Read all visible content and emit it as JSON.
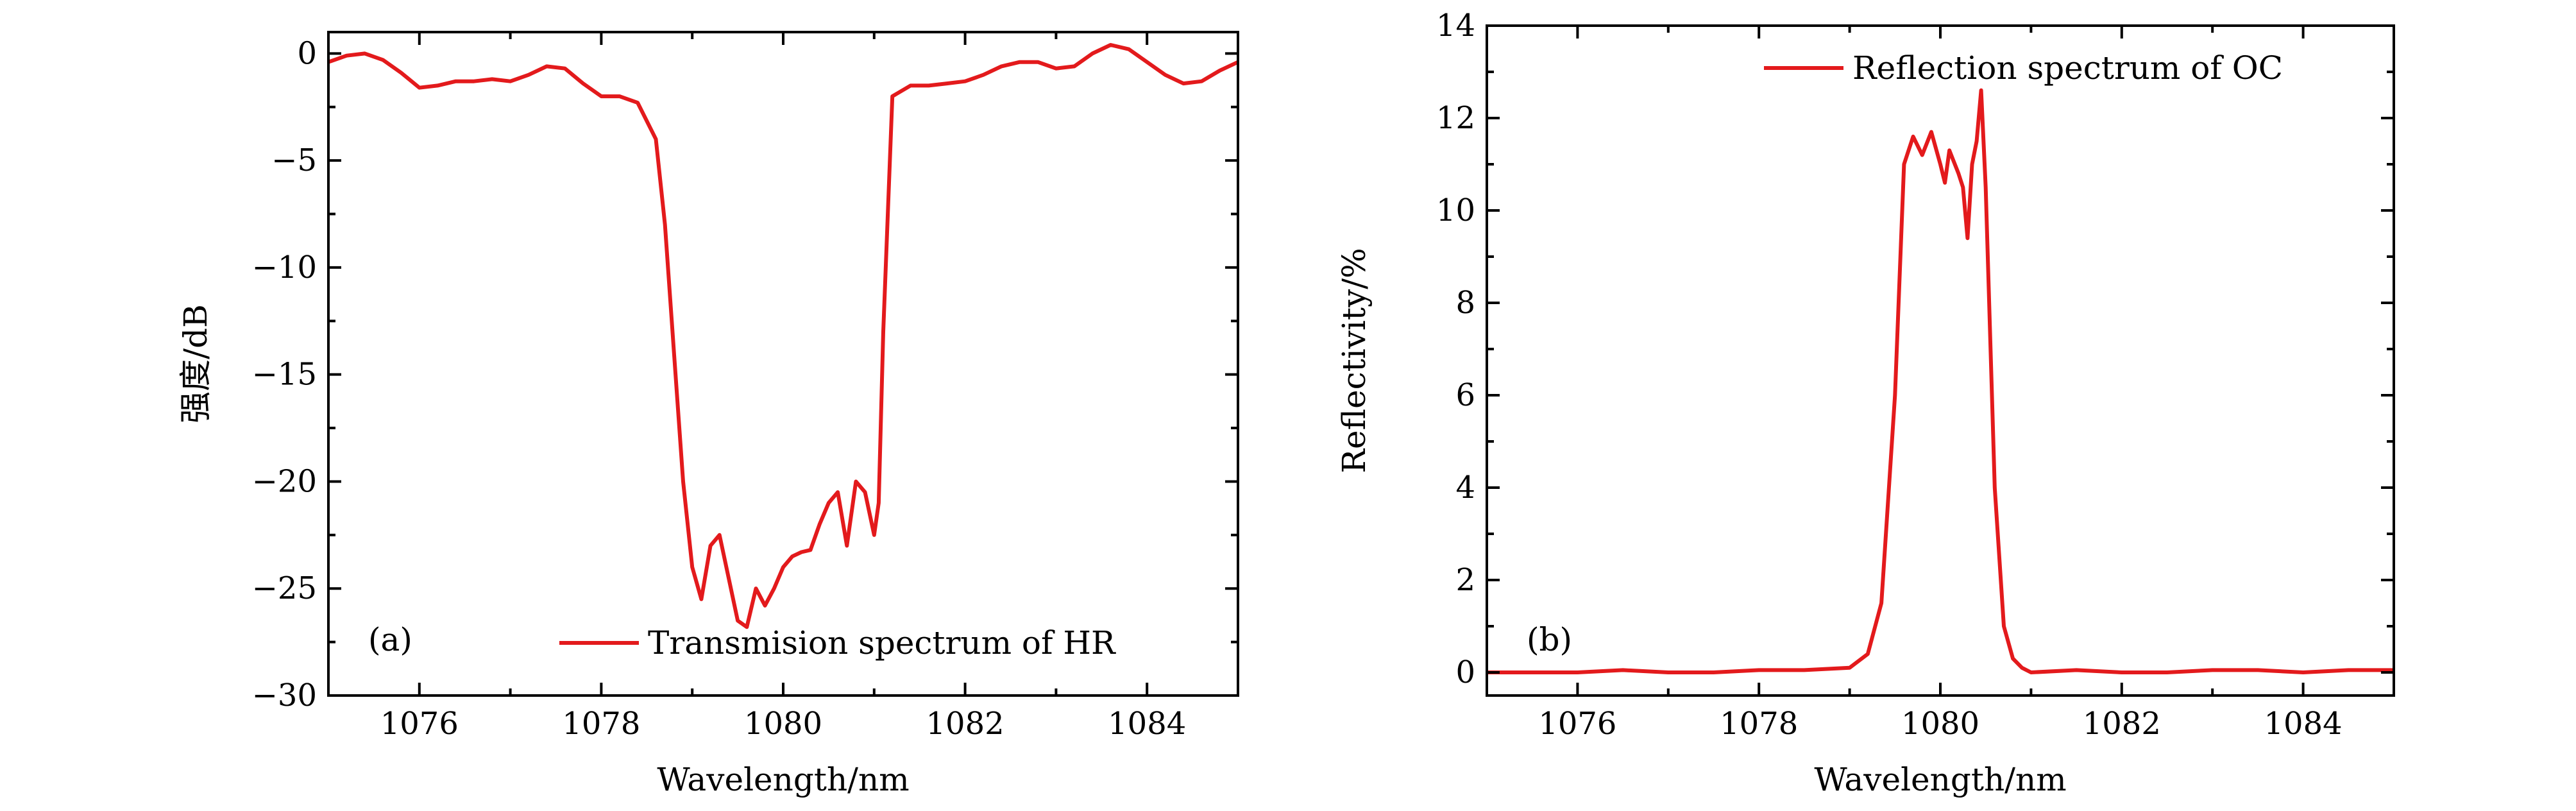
{
  "chart_data": [
    {
      "type": "line",
      "panel_label": "(a)",
      "xlabel": "Wavelength/nm",
      "ylabel": "强度/dB",
      "xlim": [
        1075,
        1085
      ],
      "ylim": [
        -30,
        1
      ],
      "xticks": [
        1076,
        1078,
        1080,
        1082,
        1084
      ],
      "xtick_labels": [
        "1076",
        "1078",
        "1080",
        "1082",
        "1084"
      ],
      "yticks": [
        0,
        -5,
        -10,
        -15,
        -20,
        -25,
        -30
      ],
      "ytick_labels": [
        "0",
        "−5",
        "−10",
        "−15",
        "−20",
        "−25",
        "−30"
      ],
      "legend_position": "bottom-right",
      "color": "#e31a1c",
      "series": [
        {
          "name": "Transmision spectrum of HR",
          "x": [
            1075.0,
            1075.2,
            1075.4,
            1075.6,
            1075.8,
            1076.0,
            1076.2,
            1076.4,
            1076.6,
            1076.8,
            1077.0,
            1077.2,
            1077.4,
            1077.6,
            1077.8,
            1078.0,
            1078.2,
            1078.4,
            1078.6,
            1078.7,
            1078.8,
            1078.9,
            1079.0,
            1079.1,
            1079.2,
            1079.3,
            1079.4,
            1079.5,
            1079.6,
            1079.7,
            1079.8,
            1079.9,
            1080.0,
            1080.1,
            1080.2,
            1080.3,
            1080.4,
            1080.5,
            1080.6,
            1080.7,
            1080.8,
            1080.9,
            1081.0,
            1081.05,
            1081.1,
            1081.2,
            1081.4,
            1081.6,
            1081.8,
            1082.0,
            1082.2,
            1082.4,
            1082.6,
            1082.8,
            1083.0,
            1083.2,
            1083.4,
            1083.6,
            1083.8,
            1084.0,
            1084.2,
            1084.4,
            1084.6,
            1084.8,
            1085.0
          ],
          "y": [
            -0.4,
            -0.1,
            0.0,
            -0.3,
            -0.9,
            -1.6,
            -1.5,
            -1.3,
            -1.3,
            -1.2,
            -1.3,
            -1.0,
            -0.6,
            -0.7,
            -1.4,
            -2.0,
            -2.0,
            -2.3,
            -4.0,
            -8.0,
            -14.0,
            -20.0,
            -24.0,
            -25.5,
            -23.0,
            -22.5,
            -24.5,
            -26.5,
            -26.8,
            -25.0,
            -25.8,
            -25.0,
            -24.0,
            -23.5,
            -23.3,
            -23.2,
            -22.0,
            -21.0,
            -20.5,
            -23.0,
            -20.0,
            -20.5,
            -22.5,
            -21.0,
            -13.0,
            -2.0,
            -1.5,
            -1.5,
            -1.4,
            -1.3,
            -1.0,
            -0.6,
            -0.4,
            -0.4,
            -0.7,
            -0.6,
            0.0,
            0.4,
            0.2,
            -0.4,
            -1.0,
            -1.4,
            -1.3,
            -0.8,
            -0.4
          ]
        }
      ]
    },
    {
      "type": "line",
      "panel_label": "(b)",
      "xlabel": "Wavelength/nm",
      "ylabel": "Reflectivity/%",
      "xlim": [
        1075,
        1085
      ],
      "ylim": [
        -0.5,
        14
      ],
      "xticks": [
        1076,
        1078,
        1080,
        1082,
        1084
      ],
      "xtick_labels": [
        "1076",
        "1078",
        "1080",
        "1082",
        "1084"
      ],
      "yticks": [
        0,
        2,
        4,
        6,
        8,
        10,
        12,
        14
      ],
      "ytick_labels": [
        "0",
        "2",
        "4",
        "6",
        "8",
        "10",
        "12",
        "14"
      ],
      "legend_position": "top-right",
      "color": "#e31a1c",
      "series": [
        {
          "name": "Reflection spectrum of OC",
          "x": [
            1075.0,
            1075.5,
            1076.0,
            1076.5,
            1077.0,
            1077.5,
            1078.0,
            1078.5,
            1079.0,
            1079.2,
            1079.35,
            1079.5,
            1079.6,
            1079.7,
            1079.8,
            1079.9,
            1080.0,
            1080.05,
            1080.1,
            1080.2,
            1080.25,
            1080.3,
            1080.35,
            1080.4,
            1080.45,
            1080.5,
            1080.6,
            1080.7,
            1080.8,
            1080.9,
            1081.0,
            1081.5,
            1082.0,
            1082.5,
            1083.0,
            1083.5,
            1084.0,
            1084.5,
            1085.0
          ],
          "y": [
            0.0,
            0.0,
            0.0,
            0.05,
            0.0,
            0.0,
            0.05,
            0.05,
            0.1,
            0.4,
            1.5,
            6.0,
            11.0,
            11.6,
            11.2,
            11.7,
            11.0,
            10.6,
            11.3,
            10.8,
            10.5,
            9.4,
            11.0,
            11.5,
            12.6,
            10.5,
            4.0,
            1.0,
            0.3,
            0.1,
            0.0,
            0.05,
            0.0,
            0.0,
            0.05,
            0.05,
            0.0,
            0.05,
            0.05
          ]
        }
      ]
    }
  ]
}
